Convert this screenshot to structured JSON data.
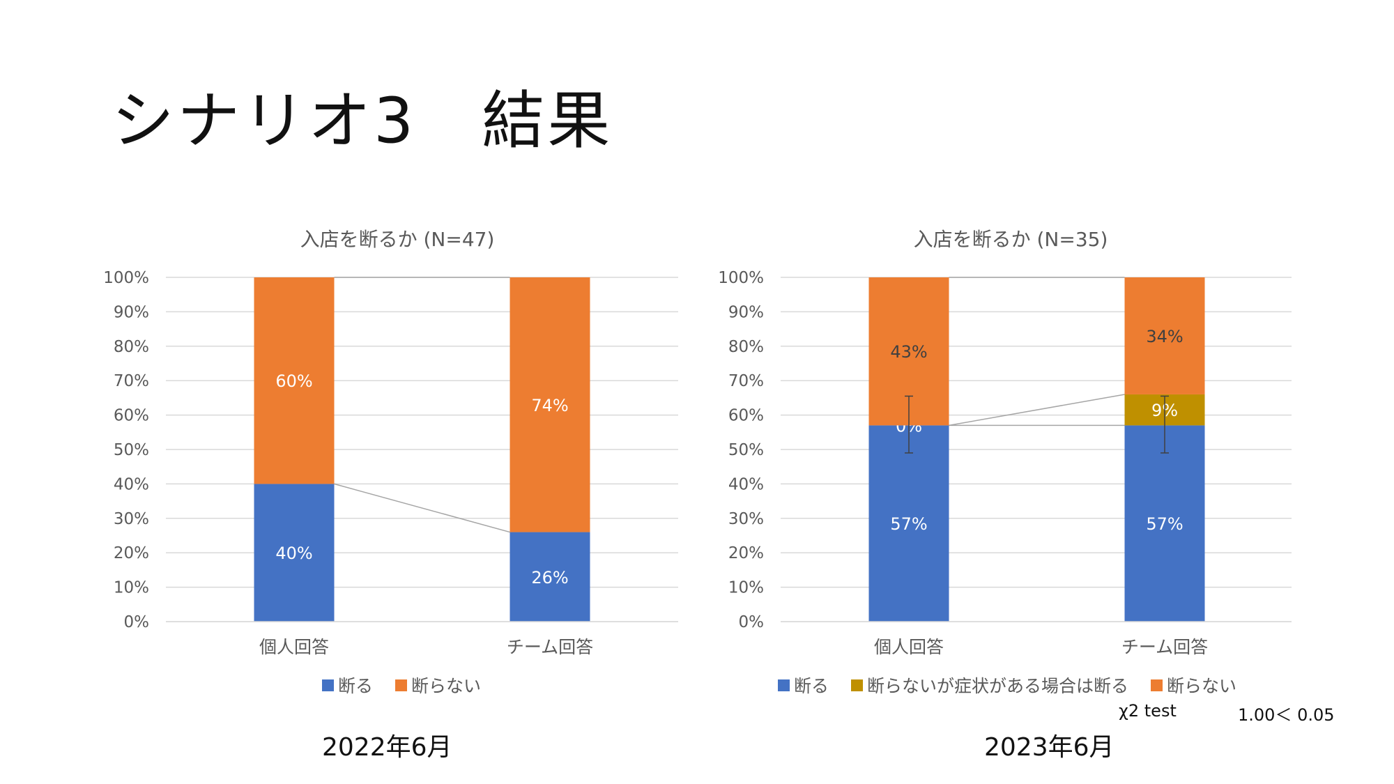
{
  "page": {
    "title": "シナリオ3　結果"
  },
  "colors": {
    "blue": "#4472C4",
    "orange": "#ED7D31",
    "gold": "#BF9000",
    "grid": "#D9D9D9",
    "axis": "#595959",
    "connector": "#A5A5A5"
  },
  "chart_data": [
    {
      "type": "bar",
      "stacked": "percent",
      "title": "入店を断るか (N=47)",
      "categories": [
        "個人回答",
        "チーム回答"
      ],
      "y_ticks": [
        "0%",
        "10%",
        "20%",
        "30%",
        "40%",
        "50%",
        "60%",
        "70%",
        "80%",
        "90%",
        "100%"
      ],
      "ylim": [
        0,
        100
      ],
      "series": [
        {
          "name": "断る",
          "color": "#4472C4",
          "values": [
            40,
            26
          ],
          "labels": [
            "40%",
            "26%"
          ]
        },
        {
          "name": "断らない",
          "color": "#ED7D31",
          "values": [
            60,
            74
          ],
          "labels": [
            "60%",
            "74%"
          ]
        }
      ],
      "legend": [
        "断る",
        "断らない"
      ],
      "series_lines": true,
      "caption": "2022年6月"
    },
    {
      "type": "bar",
      "stacked": "percent",
      "title": "入店を断るか (N=35)",
      "categories": [
        "個人回答",
        "チーム回答"
      ],
      "y_ticks": [
        "0%",
        "10%",
        "20%",
        "30%",
        "40%",
        "50%",
        "60%",
        "70%",
        "80%",
        "90%",
        "100%"
      ],
      "ylim": [
        0,
        100
      ],
      "series": [
        {
          "name": "断る",
          "color": "#4472C4",
          "values": [
            57,
            57
          ],
          "labels": [
            "57%",
            "57%"
          ]
        },
        {
          "name": "断らないが症状がある場合は断る",
          "color": "#BF9000",
          "values": [
            0,
            9
          ],
          "labels": [
            "0%",
            "9%"
          ]
        },
        {
          "name": "断らない",
          "color": "#ED7D31",
          "values": [
            43,
            34
          ],
          "labels": [
            "43%",
            "34%"
          ]
        }
      ],
      "error_bars": [
        {
          "category": "個人回答",
          "center": 57,
          "low": 49,
          "high": 65.5
        },
        {
          "category": "チーム回答",
          "center": 57,
          "low": 49,
          "high": 65.5
        }
      ],
      "legend": [
        "断る",
        "断らないが症状がある場合は断る",
        "断らない"
      ],
      "series_lines": true,
      "caption": "2023年6月",
      "stat_test": {
        "label": "χ2 test",
        "result": "1.00＜ 0.05"
      }
    }
  ]
}
